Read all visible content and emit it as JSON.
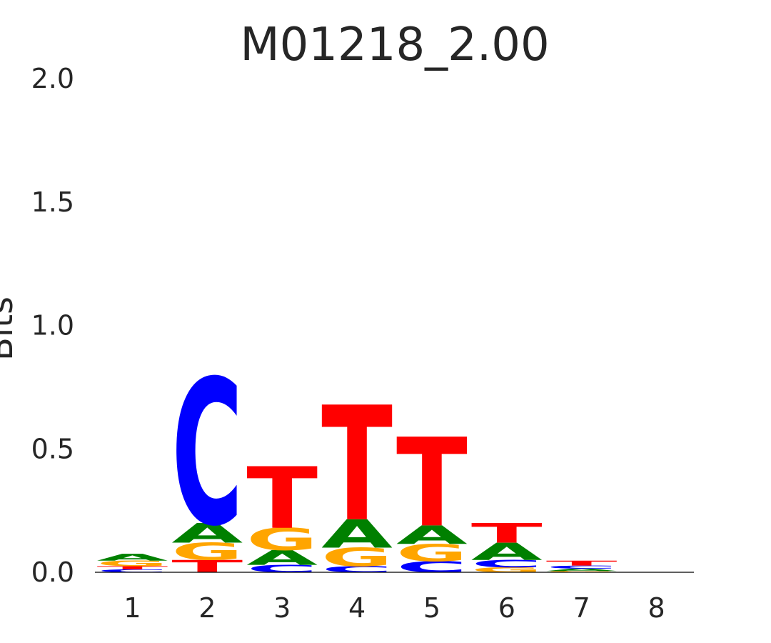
{
  "chart_data": {
    "type": "sequence-logo",
    "title": "M01218_2.00",
    "xlabel": "",
    "ylabel": "Bits",
    "ylim": [
      0,
      2
    ],
    "yticks": [
      "0.0",
      "0.5",
      "1.0",
      "1.5",
      "2.0"
    ],
    "ytick_values": [
      0,
      0.5,
      1,
      1.5,
      2
    ],
    "categories": [
      "1",
      "2",
      "3",
      "4",
      "5",
      "6",
      "7",
      "8"
    ],
    "colors": {
      "A": "#008000",
      "C": "#0000ff",
      "G": "#ffa500",
      "T": "#ff0000"
    },
    "positions": [
      [
        {
          "letter": "C",
          "bits": 0.012
        },
        {
          "letter": "T",
          "bits": 0.013
        },
        {
          "letter": "G",
          "bits": 0.022
        },
        {
          "letter": "A",
          "bits": 0.028
        }
      ],
      [
        {
          "letter": "T",
          "bits": 0.05
        },
        {
          "letter": "G",
          "bits": 0.07
        },
        {
          "letter": "A",
          "bits": 0.08
        },
        {
          "letter": "C",
          "bits": 0.59
        }
      ],
      [
        {
          "letter": "C",
          "bits": 0.03
        },
        {
          "letter": "A",
          "bits": 0.06
        },
        {
          "letter": "G",
          "bits": 0.09
        },
        {
          "letter": "T",
          "bits": 0.25
        }
      ],
      [
        {
          "letter": "C",
          "bits": 0.025
        },
        {
          "letter": "G",
          "bits": 0.075
        },
        {
          "letter": "A",
          "bits": 0.115
        },
        {
          "letter": "T",
          "bits": 0.465
        }
      ],
      [
        {
          "letter": "C",
          "bits": 0.045
        },
        {
          "letter": "G",
          "bits": 0.07
        },
        {
          "letter": "A",
          "bits": 0.075
        },
        {
          "letter": "T",
          "bits": 0.36
        }
      ],
      [
        {
          "letter": "G",
          "bits": 0.02
        },
        {
          "letter": "C",
          "bits": 0.03
        },
        {
          "letter": "A",
          "bits": 0.07
        },
        {
          "letter": "T",
          "bits": 0.08
        }
      ],
      [
        {
          "letter": "G",
          "bits": 0.005
        },
        {
          "letter": "A",
          "bits": 0.01
        },
        {
          "letter": "C",
          "bits": 0.012
        },
        {
          "letter": "T",
          "bits": 0.02
        }
      ],
      []
    ]
  }
}
